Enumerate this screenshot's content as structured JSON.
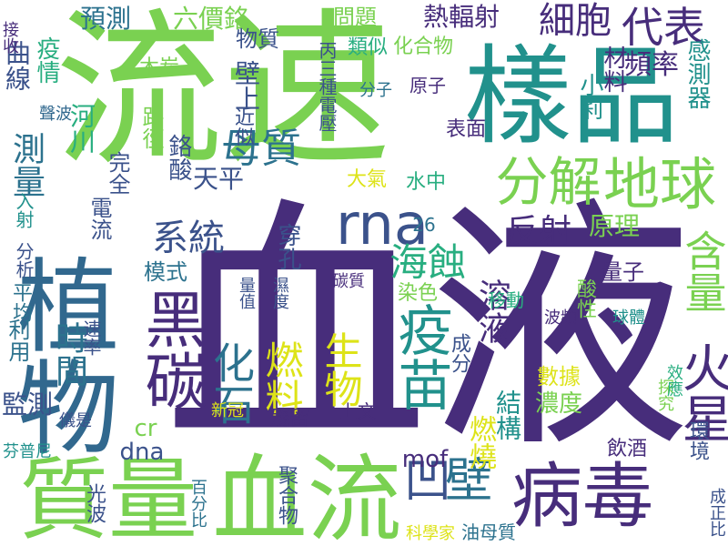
{
  "palette": {
    "purple": "#472d7b",
    "blue": "#3b528b",
    "steel": "#2c728e",
    "teal": "#21918c",
    "sea": "#28ae80",
    "green": "#5ec962",
    "lime": "#addc30",
    "yellow": "#dde318"
  },
  "words": [
    {
      "text": "血液",
      "color": "#472d7b",
      "orient": "h"
    },
    {
      "text": "流速",
      "color": "#7ad151",
      "orient": "h"
    },
    {
      "text": "植物",
      "color": "#31688e",
      "orient": "v"
    },
    {
      "text": "樣品",
      "color": "#21918c",
      "orient": "h"
    },
    {
      "text": "血流",
      "color": "#7ad151",
      "orient": "h"
    },
    {
      "text": "質量",
      "color": "#7ad151",
      "orient": "h"
    },
    {
      "text": "病毒",
      "color": "#472d7b",
      "orient": "h"
    },
    {
      "text": "黑碳",
      "color": "#472d7b",
      "orient": "v"
    },
    {
      "text": "rna",
      "color": "#3b528b",
      "orient": "h"
    },
    {
      "text": "地球",
      "color": "#7ad151",
      "orient": "h"
    },
    {
      "text": "分解",
      "color": "#7ad151",
      "orient": "h"
    },
    {
      "text": "疫苗",
      "color": "#21918c",
      "orient": "v"
    },
    {
      "text": "火星",
      "color": "#472d7b",
      "orient": "v"
    },
    {
      "text": "含量",
      "color": "#7ad151",
      "orient": "v"
    },
    {
      "text": "化石",
      "color": "#2c728e",
      "orient": "v"
    },
    {
      "text": "燃料",
      "color": "#dde318",
      "orient": "v"
    },
    {
      "text": "生物",
      "color": "#dde318",
      "orient": "v"
    },
    {
      "text": "凹",
      "color": "#3b528b",
      "orient": "h"
    },
    {
      "text": "壁",
      "color": "#2c728e",
      "orient": "h"
    },
    {
      "text": "代表",
      "color": "#472d7b",
      "orient": "h"
    },
    {
      "text": "細胞",
      "color": "#472d7b",
      "orient": "h"
    },
    {
      "text": "母質",
      "color": "#2c728e",
      "orient": "h"
    },
    {
      "text": "測量",
      "color": "#2c728e",
      "orient": "v"
    },
    {
      "text": "系統",
      "color": "#3b528b",
      "orient": "h"
    },
    {
      "text": "海蝕",
      "color": "#28ae80",
      "orient": "h"
    },
    {
      "text": "溶液",
      "color": "#472d7b",
      "orient": "v"
    },
    {
      "text": "反射",
      "color": "#472d7b",
      "orient": "h"
    },
    {
      "text": "時間",
      "color": "#2c728e",
      "orient": "v"
    },
    {
      "text": "頻率",
      "color": "#472d7b",
      "orient": "h"
    },
    {
      "text": "類似",
      "color": "#28ae80",
      "orient": "h"
    },
    {
      "text": "化合物",
      "color": "#7ad151",
      "orient": "h"
    },
    {
      "text": "問題",
      "color": "#7ad151",
      "orient": "h"
    },
    {
      "text": "熱輻射",
      "color": "#472d7b",
      "orient": "h"
    },
    {
      "text": "預測",
      "color": "#2c728e",
      "orient": "h"
    },
    {
      "text": "六價鉻",
      "color": "#7ad151",
      "orient": "h"
    },
    {
      "text": "物質",
      "color": "#3b528b",
      "orient": "h"
    },
    {
      "text": "感測器",
      "color": "#21918c",
      "orient": "v"
    },
    {
      "text": "小莉",
      "color": "#21918c",
      "orient": "v"
    },
    {
      "text": "材料",
      "color": "#472d7b",
      "orient": "v"
    },
    {
      "text": "丙三種電壓",
      "color": "#3b528b",
      "orient": "v"
    },
    {
      "text": "原子",
      "color": "#472d7b",
      "orient": "h"
    },
    {
      "text": "分子",
      "color": "#2c728e",
      "orient": "h"
    },
    {
      "text": "表面",
      "color": "#472d7b",
      "orient": "h"
    },
    {
      "text": "曲線",
      "color": "#3b528b",
      "orient": "v"
    },
    {
      "text": "疫情",
      "color": "#28ae80",
      "orient": "v"
    },
    {
      "text": "接收",
      "color": "#472d7b",
      "orient": "v"
    },
    {
      "text": "聲波",
      "color": "#31688e",
      "orient": "h"
    },
    {
      "text": "河川",
      "color": "#28ae80",
      "orient": "v"
    },
    {
      "text": "木炭",
      "color": "#7ad151",
      "orient": "h"
    },
    {
      "text": "路徑",
      "color": "#7ad151",
      "orient": "v"
    },
    {
      "text": "完全",
      "color": "#3b528b",
      "orient": "v"
    },
    {
      "text": "電流",
      "color": "#3b528b",
      "orient": "v"
    },
    {
      "text": "鉻酸",
      "color": "#3b528b",
      "orient": "v"
    },
    {
      "text": "近似",
      "color": "#3b528b",
      "orient": "v"
    },
    {
      "text": "壁上",
      "color": "#3b528b",
      "orient": "v"
    },
    {
      "text": "天平",
      "color": "#3b528b",
      "orient": "h"
    },
    {
      "text": "大氣",
      "color": "#dde318",
      "orient": "h"
    },
    {
      "text": "水中",
      "color": "#28ae80",
      "orient": "h"
    },
    {
      "text": "原理",
      "color": "#7ad151",
      "orient": "h"
    },
    {
      "text": "26",
      "color": "#2c728e",
      "orient": "h"
    },
    {
      "text": "穿孔",
      "color": "#3b528b",
      "orient": "v"
    },
    {
      "text": "入射",
      "color": "#21918c",
      "orient": "v"
    },
    {
      "text": "分析",
      "color": "#3b528b",
      "orient": "v"
    },
    {
      "text": "平均",
      "color": "#2c728e",
      "orient": "v"
    },
    {
      "text": "利用",
      "color": "#2c728e",
      "orient": "v"
    },
    {
      "text": "模式",
      "color": "#2c728e",
      "orient": "h"
    },
    {
      "text": "量值",
      "color": "#3b528b",
      "orient": "v"
    },
    {
      "text": "濕度",
      "color": "#3b528b",
      "orient": "v"
    },
    {
      "text": "碳質",
      "color": "#472d7b",
      "orient": "h"
    },
    {
      "text": "染色",
      "color": "#7ad151",
      "orient": "h"
    },
    {
      "text": "移動",
      "color": "#28ae80",
      "orient": "h"
    },
    {
      "text": "酸性",
      "color": "#7ad151",
      "orient": "v"
    },
    {
      "text": "量子",
      "color": "#472d7b",
      "orient": "h"
    },
    {
      "text": "球體",
      "color": "#21918c",
      "orient": "h"
    },
    {
      "text": "波頻",
      "color": "#472d7b",
      "orient": "h"
    },
    {
      "text": "速率",
      "color": "#3b528b",
      "orient": "v"
    },
    {
      "text": "cr",
      "color": "#7ad151",
      "orient": "h"
    },
    {
      "text": "成分",
      "color": "#3b528b",
      "orient": "v"
    },
    {
      "text": "dna",
      "color": "#3b528b",
      "orient": "h"
    },
    {
      "text": "mof",
      "color": "#472d7b",
      "orient": "h"
    },
    {
      "text": "燃燒",
      "color": "#dde318",
      "orient": "v"
    },
    {
      "text": "結構",
      "color": "#21918c",
      "orient": "v"
    },
    {
      "text": "數據",
      "color": "#dde318",
      "orient": "h"
    },
    {
      "text": "濃度",
      "color": "#7ad151",
      "orient": "h"
    },
    {
      "text": "新冠",
      "color": "#dde318",
      "orient": "h"
    },
    {
      "text": "殘留",
      "color": "#472d7b",
      "orient": "h"
    },
    {
      "text": "上文",
      "color": "#472d7b",
      "orient": "h"
    },
    {
      "text": "探究",
      "color": "#7ad151",
      "orient": "v"
    },
    {
      "text": "效應",
      "color": "#28ae80",
      "orient": "v"
    },
    {
      "text": "環境",
      "color": "#3b528b",
      "orient": "v"
    },
    {
      "text": "飲酒",
      "color": "#472d7b",
      "orient": "h"
    },
    {
      "text": "成正比",
      "color": "#3b528b",
      "orient": "v"
    },
    {
      "text": "監測",
      "color": "#3b528b",
      "orient": "h"
    },
    {
      "text": "儀是",
      "color": "#3b528b",
      "orient": "h"
    },
    {
      "text": "芬普尼",
      "color": "#21918c",
      "orient": "h"
    },
    {
      "text": "光波",
      "color": "#3b528b",
      "orient": "v"
    },
    {
      "text": "百分比",
      "color": "#2c728e",
      "orient": "v"
    },
    {
      "text": "聚合物",
      "color": "#3b528b",
      "orient": "v"
    },
    {
      "text": "科學家",
      "color": "#dde318",
      "orient": "h"
    },
    {
      "text": "油母質",
      "color": "#2c728e",
      "orient": "h"
    }
  ]
}
